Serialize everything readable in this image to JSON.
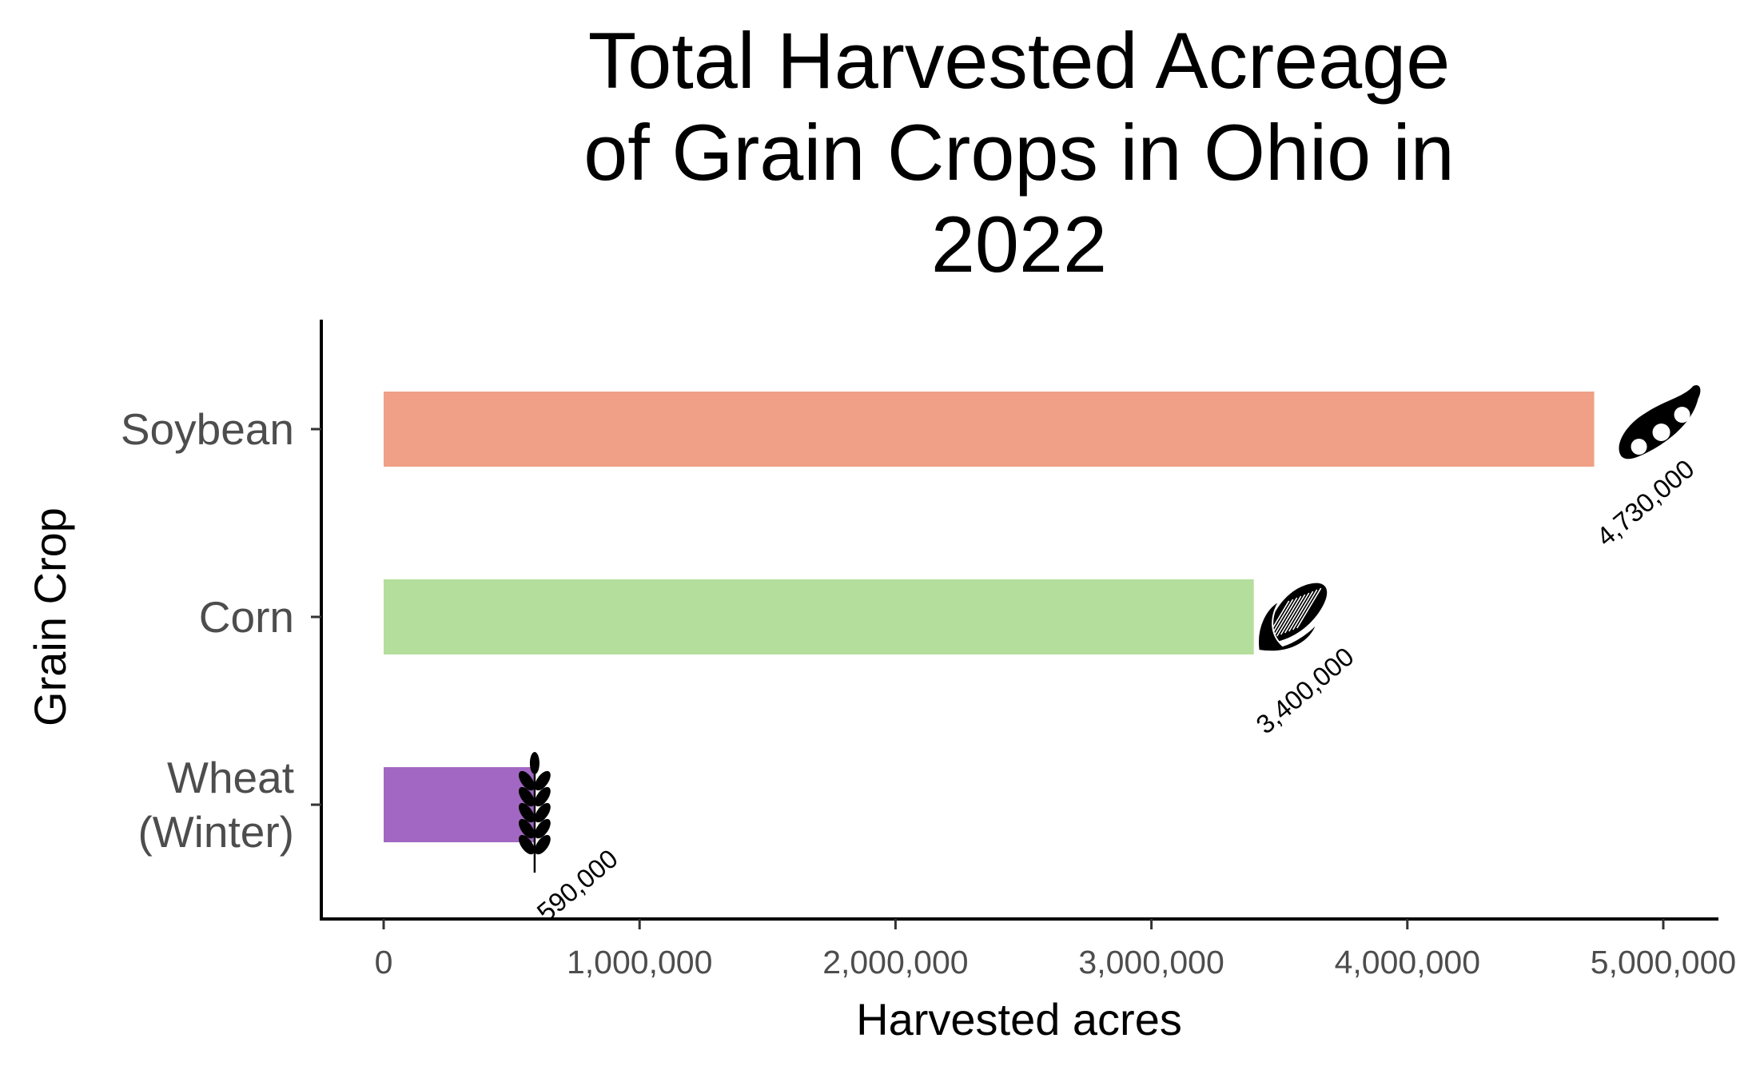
{
  "chart_data": {
    "type": "bar",
    "orientation": "horizontal",
    "title_lines": [
      "Total Harvested Acreage",
      "of Grain Crops in Ohio in",
      "2022"
    ],
    "xlabel": "Harvested acres",
    "ylabel": "Grain Crop",
    "xlim": [
      0,
      5000000
    ],
    "x_ticks": [
      0,
      1000000,
      2000000,
      3000000,
      4000000,
      5000000
    ],
    "x_tick_labels": [
      "0",
      "1,000,000",
      "2,000,000",
      "3,000,000",
      "4,000,000",
      "5,000,000"
    ],
    "grid": false,
    "legend": "none",
    "bars": [
      {
        "category": "Soybean",
        "label_lines": [
          "Soybean"
        ],
        "value": 4730000,
        "value_label": "4,730,000",
        "color": "#EFA086",
        "icon": "soybean-pod-icon"
      },
      {
        "category": "Corn",
        "label_lines": [
          "Corn"
        ],
        "value": 3400000,
        "value_label": "3,400,000",
        "color": "#B4DE9C",
        "icon": "corn-cob-icon"
      },
      {
        "category": "Wheat (Winter)",
        "label_lines": [
          "Wheat",
          "(Winter)"
        ],
        "value": 590000,
        "value_label": "590,000",
        "color": "#A267C2",
        "icon": "wheat-stalk-icon"
      }
    ]
  }
}
